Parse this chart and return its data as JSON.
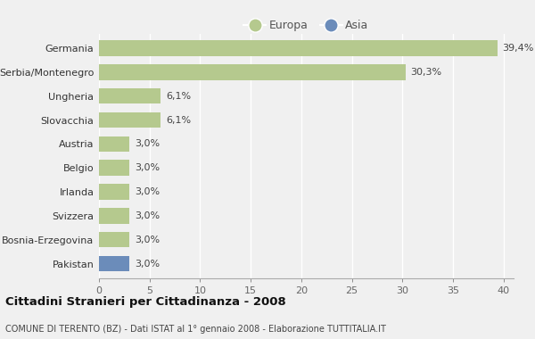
{
  "categories": [
    "Pakistan",
    "Bosnia-Erzegovina",
    "Svizzera",
    "Irlanda",
    "Belgio",
    "Austria",
    "Slovacchia",
    "Ungheria",
    "Serbia/Montenegro",
    "Germania"
  ],
  "values": [
    3.0,
    3.0,
    3.0,
    3.0,
    3.0,
    3.0,
    6.1,
    6.1,
    30.3,
    39.4
  ],
  "labels": [
    "3,0%",
    "3,0%",
    "3,0%",
    "3,0%",
    "3,0%",
    "3,0%",
    "6,1%",
    "6,1%",
    "30,3%",
    "39,4%"
  ],
  "colors": [
    "#6b8cba",
    "#b5c98e",
    "#b5c98e",
    "#b5c98e",
    "#b5c98e",
    "#b5c98e",
    "#b5c98e",
    "#b5c98e",
    "#b5c98e",
    "#b5c98e"
  ],
  "europa_color": "#b5c98e",
  "asia_color": "#6b8cba",
  "title": "Cittadini Stranieri per Cittadinanza - 2008",
  "subtitle": "COMUNE DI TERENTO (BZ) - Dati ISTAT al 1° gennaio 2008 - Elaborazione TUTTITALIA.IT",
  "xlim": [
    0,
    41
  ],
  "xticks": [
    0,
    5,
    10,
    15,
    20,
    25,
    30,
    35,
    40
  ],
  "background_color": "#f0f0f0",
  "legend_europa": "Europa",
  "legend_asia": "Asia",
  "bar_height": 0.65
}
